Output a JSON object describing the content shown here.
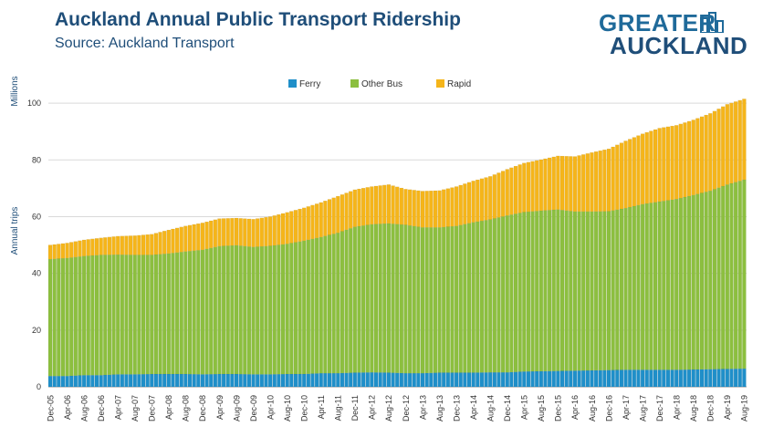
{
  "header": {
    "title": "Auckland Annual Public Transport Ridership",
    "subtitle": "Source: Auckland Transport"
  },
  "logo": {
    "line1": "GREATER",
    "line2": "AUCKLAND",
    "icon": "building-icon"
  },
  "colors": {
    "ferry": "#1f8fc9",
    "other_bus": "#8cbf3f",
    "rapid": "#f5b51a",
    "grid": "#d9d9d9"
  },
  "chart_data": {
    "type": "bar",
    "stacked": true,
    "ylabel": "Annual trips",
    "yunit": "Millions",
    "ylim": [
      0,
      110
    ],
    "yticks": [
      0,
      20,
      40,
      60,
      80,
      100
    ],
    "grid": true,
    "legend_position": "top",
    "xtick_labels": [
      "Dec-05",
      "Apr-06",
      "Aug-06",
      "Dec-06",
      "Apr-07",
      "Aug-07",
      "Dec-07",
      "Apr-08",
      "Aug-08",
      "Dec-08",
      "Apr-09",
      "Aug-09",
      "Dec-09",
      "Apr-10",
      "Aug-10",
      "Dec-10",
      "Apr-11",
      "Aug-11",
      "Dec-11",
      "Apr-12",
      "Aug-12",
      "Dec-12",
      "Apr-13",
      "Aug-13",
      "Dec-13",
      "Apr-14",
      "Aug-14",
      "Dec-14",
      "Apr-15",
      "Aug-15",
      "Dec-15",
      "Apr-16",
      "Aug-16",
      "Dec-16",
      "Apr-17",
      "Aug-17",
      "Dec-17",
      "Apr-18",
      "Aug-18",
      "Dec-18",
      "Apr-19",
      "Aug-19"
    ],
    "series": [
      {
        "name": "Ferry",
        "values": [
          3.8,
          3.8,
          4.1,
          4.1,
          4.4,
          4.4,
          4.5,
          4.5,
          4.5,
          4.4,
          4.5,
          4.5,
          4.4,
          4.4,
          4.5,
          4.5,
          4.8,
          4.8,
          5.0,
          5.1,
          5.0,
          4.8,
          4.8,
          5.0,
          5.0,
          5.0,
          5.1,
          5.1,
          5.4,
          5.5,
          5.6,
          5.7,
          5.8,
          5.9,
          6.0,
          6.0,
          6.0,
          6.0,
          6.1,
          6.2,
          6.3,
          6.4
        ]
      },
      {
        "name": "Other Bus",
        "values": [
          41.2,
          41.6,
          42.0,
          42.4,
          42.2,
          42.1,
          42.0,
          42.5,
          43.2,
          43.9,
          45.1,
          45.4,
          44.9,
          45.3,
          45.9,
          47.0,
          48.0,
          49.5,
          51.4,
          52.2,
          52.6,
          52.3,
          51.4,
          51.2,
          51.7,
          53.0,
          53.9,
          55.3,
          56.2,
          56.6,
          56.9,
          56.1,
          56.0,
          56.0,
          57.0,
          58.4,
          59.3,
          60.2,
          61.5,
          62.9,
          65.0,
          66.6
        ]
      },
      {
        "name": "Rapid",
        "values": [
          5.0,
          5.3,
          5.7,
          6.0,
          6.5,
          6.8,
          7.3,
          8.3,
          9.0,
          9.5,
          9.7,
          9.6,
          9.8,
          10.3,
          11.1,
          11.6,
          12.2,
          12.9,
          13.1,
          13.3,
          13.7,
          12.6,
          12.8,
          13.0,
          13.9,
          14.6,
          15.2,
          16.3,
          17.3,
          18.0,
          18.9,
          19.4,
          20.8,
          22.0,
          23.7,
          24.8,
          25.9,
          26.0,
          26.5,
          27.3,
          28.3,
          28.5
        ]
      }
    ]
  }
}
